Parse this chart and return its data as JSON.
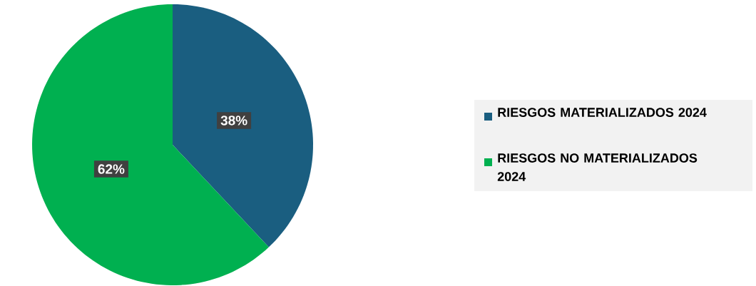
{
  "chart_data": {
    "type": "pie",
    "categories": [
      "RIESGOS MATERIALIZADOS 2024",
      "RIESGOS NO MATERIALIZADOS 2024"
    ],
    "values": [
      38,
      62
    ],
    "colors": [
      "#1a5e80",
      "#00b050"
    ],
    "value_labels": [
      "38%",
      "62%"
    ],
    "legend": "right"
  }
}
